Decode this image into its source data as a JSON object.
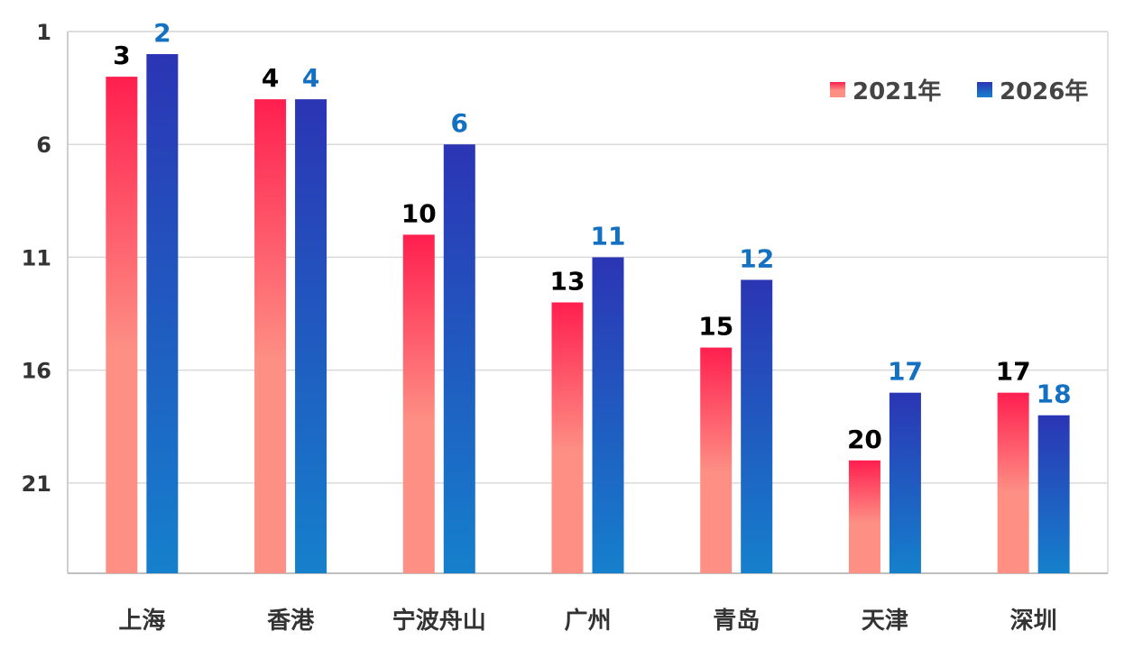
{
  "chart_data": {
    "type": "bar",
    "categories": [
      "上海",
      "香港",
      "宁波舟山",
      "广州",
      "青岛",
      "天津",
      "深圳"
    ],
    "series": [
      {
        "name": "2021年",
        "values": [
          3,
          4,
          10,
          13,
          15,
          20,
          17
        ]
      },
      {
        "name": "2026年",
        "values": [
          2,
          4,
          6,
          11,
          12,
          17,
          18
        ]
      }
    ],
    "yticks": [
      1,
      6,
      11,
      16,
      21
    ],
    "ylim": [
      1,
      25
    ],
    "y_reversed": true,
    "grid": true,
    "legend_position": "top-right",
    "colors": {
      "series_2021_top": "#ff1f4f",
      "series_2021_bottom": "#fd8f84",
      "series_2026_top": "#2b35b4",
      "series_2026_bottom": "#1580cc",
      "label_2021": "#000000",
      "label_2026": "#1470c0",
      "grid": "#d9d9d9",
      "axis": "#bfbfbf"
    }
  }
}
